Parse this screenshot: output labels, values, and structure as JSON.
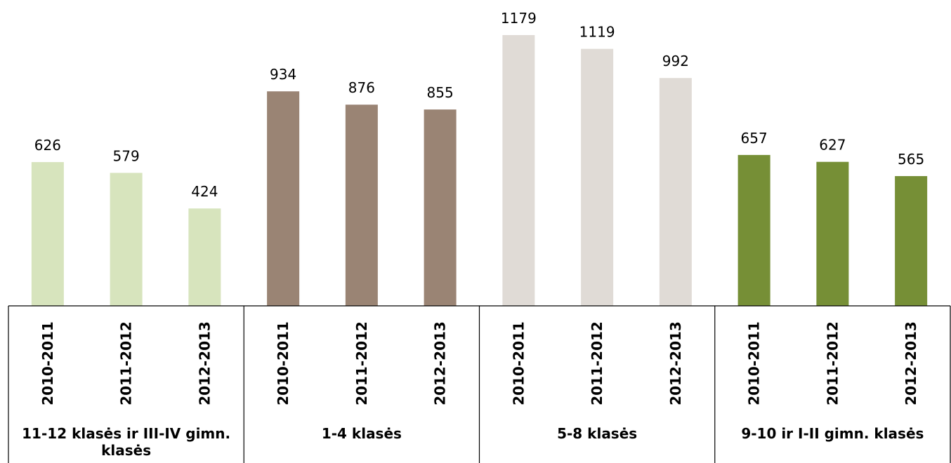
{
  "chart_data": {
    "type": "bar",
    "title": "",
    "xlabel": "",
    "ylabel": "",
    "ylim": [
      0,
      1240
    ],
    "grid": false,
    "legend": "none",
    "groups": [
      {
        "name": "11-12 klasės ir III-IV gimn. klasės",
        "label_lines": [
          "11-12 klasės ir III-IV gimn.",
          "klasės"
        ],
        "color": "#d7e4bd",
        "categories": [
          "2010-2011",
          "2011-2012",
          "2012-2013"
        ],
        "values": [
          626,
          579,
          424
        ]
      },
      {
        "name": "1-4 klasės",
        "label_lines": [
          "1-4 klasės"
        ],
        "color": "#9a8474",
        "categories": [
          "2010-2011",
          "2011-2012",
          "2012-2013"
        ],
        "values": [
          934,
          876,
          855
        ]
      },
      {
        "name": "5-8 klasės",
        "label_lines": [
          "5-8 klasės"
        ],
        "color": "#e0dbd6",
        "categories": [
          "2010-2011",
          "2011-2012",
          "2012-2013"
        ],
        "values": [
          1179,
          1119,
          992
        ]
      },
      {
        "name": "9-10 ir I-II gimn. klasės",
        "label_lines": [
          "9-10 ir I-II gimn. klasės"
        ],
        "color": "#768f36",
        "categories": [
          "2010-2011",
          "2011-2012",
          "2012-2013"
        ],
        "values": [
          657,
          627,
          565
        ]
      }
    ]
  }
}
